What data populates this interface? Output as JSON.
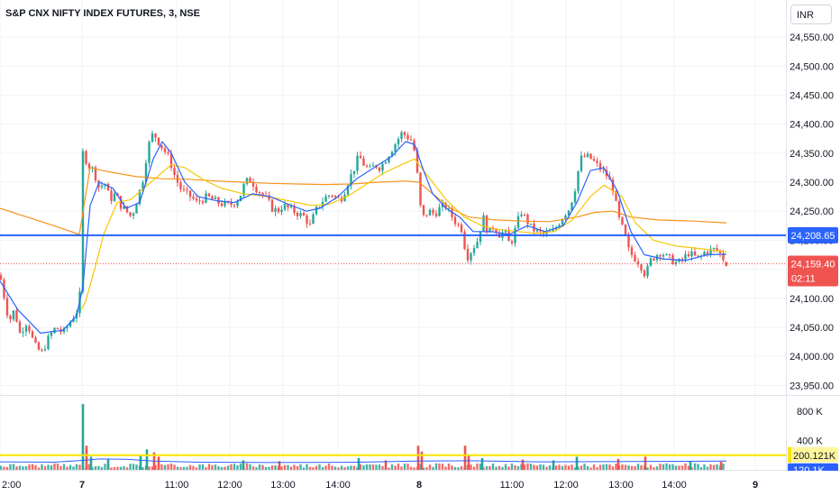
{
  "header": {
    "symbol_title": "S&P CNX NIFTY INDEX FUTURES, 3, NSE",
    "currency": "INR"
  },
  "colors": {
    "up": "#26a69a",
    "down": "#ef5350",
    "ma_fast": "#2962ff",
    "ma_mid": "#f7c600",
    "ma_slow": "#f7931a",
    "hline": "#2962ff",
    "volume_up": "#26a69a",
    "volume_down": "#ef5350",
    "volume_hline": "#f7e600",
    "price_grid": "#f0f3fa"
  },
  "chart_data": {
    "type": "candlestick",
    "title": "S&P CNX NIFTY INDEX FUTURES, 3, NSE",
    "currency": "INR",
    "x_ticks": [
      "2:00",
      "7",
      "11:00",
      "12:00",
      "13:00",
      "14:00",
      "8",
      "11:00",
      "12:00",
      "13:00",
      "14:00",
      "9"
    ],
    "y_ticks": [
      23950,
      24000,
      24050,
      24100,
      24150,
      24200,
      24250,
      24300,
      24350,
      24400,
      24450,
      24500,
      24550
    ],
    "y_tick_labels": [
      "23,950.00",
      "24,000.00",
      "24,050.00",
      "24,100.00",
      "24,150.00",
      "24,200.00",
      "24,250.00",
      "24,300.00",
      "24,350.00",
      "24,400.00",
      "24,450.00",
      "24,500.00",
      "24,550.00"
    ],
    "ylim": [
      23935,
      24575
    ],
    "horizontal_line": {
      "value": 24208.65,
      "label": "24,208.65"
    },
    "last_price": {
      "value": 24159.4,
      "label": "24,159.40",
      "countdown": "02:11"
    },
    "price_path": [
      [
        0,
        24140
      ],
      [
        5,
        24100
      ],
      [
        10,
        24060
      ],
      [
        16,
        24080
      ],
      [
        22,
        24040
      ],
      [
        30,
        24060
      ],
      [
        38,
        24020
      ],
      [
        46,
        24005
      ],
      [
        55,
        24035
      ],
      [
        62,
        24050
      ],
      [
        70,
        24040
      ],
      [
        78,
        24060
      ],
      [
        86,
        24080
      ],
      [
        90,
        24120
      ],
      [
        92,
        24350
      ],
      [
        98,
        24330
      ],
      [
        104,
        24320
      ],
      [
        110,
        24290
      ],
      [
        116,
        24300
      ],
      [
        122,
        24270
      ],
      [
        128,
        24280
      ],
      [
        134,
        24260
      ],
      [
        140,
        24250
      ],
      [
        146,
        24240
      ],
      [
        152,
        24270
      ],
      [
        158,
        24300
      ],
      [
        164,
        24360
      ],
      [
        170,
        24385
      ],
      [
        176,
        24370
      ],
      [
        182,
        24355
      ],
      [
        188,
        24340
      ],
      [
        194,
        24310
      ],
      [
        200,
        24290
      ],
      [
        206,
        24280
      ],
      [
        212,
        24275
      ],
      [
        218,
        24265
      ],
      [
        224,
        24270
      ],
      [
        230,
        24275
      ],
      [
        236,
        24270
      ],
      [
        242,
        24265
      ],
      [
        248,
        24262
      ],
      [
        254,
        24260
      ],
      [
        260,
        24265
      ],
      [
        266,
        24275
      ],
      [
        272,
        24300
      ],
      [
        278,
        24305
      ],
      [
        284,
        24290
      ],
      [
        290,
        24280
      ],
      [
        296,
        24270
      ],
      [
        302,
        24255
      ],
      [
        308,
        24250
      ],
      [
        314,
        24260
      ],
      [
        320,
        24255
      ],
      [
        326,
        24250
      ],
      [
        332,
        24245
      ],
      [
        338,
        24240
      ],
      [
        344,
        24225
      ],
      [
        350,
        24250
      ],
      [
        356,
        24265
      ],
      [
        362,
        24275
      ],
      [
        368,
        24280
      ],
      [
        374,
        24270
      ],
      [
        380,
        24275
      ],
      [
        386,
        24300
      ],
      [
        392,
        24320
      ],
      [
        398,
        24345
      ],
      [
        404,
        24330
      ],
      [
        410,
        24320
      ],
      [
        416,
        24330
      ],
      [
        422,
        24325
      ],
      [
        428,
        24340
      ],
      [
        434,
        24355
      ],
      [
        440,
        24370
      ],
      [
        446,
        24385
      ],
      [
        452,
        24378
      ],
      [
        458,
        24370
      ],
      [
        462,
        24330
      ],
      [
        466,
        24260
      ],
      [
        470,
        24240
      ],
      [
        476,
        24250
      ],
      [
        482,
        24245
      ],
      [
        488,
        24255
      ],
      [
        494,
        24260
      ],
      [
        500,
        24245
      ],
      [
        506,
        24230
      ],
      [
        512,
        24220
      ],
      [
        518,
        24170
      ],
      [
        524,
        24185
      ],
      [
        530,
        24200
      ],
      [
        536,
        24240
      ],
      [
        542,
        24210
      ],
      [
        548,
        24225
      ],
      [
        554,
        24210
      ],
      [
        560,
        24215
      ],
      [
        566,
        24190
      ],
      [
        572,
        24220
      ],
      [
        578,
        24250
      ],
      [
        584,
        24235
      ],
      [
        590,
        24220
      ],
      [
        596,
        24215
      ],
      [
        602,
        24210
      ],
      [
        608,
        24212
      ],
      [
        614,
        24215
      ],
      [
        620,
        24230
      ],
      [
        626,
        24245
      ],
      [
        632,
        24255
      ],
      [
        638,
        24290
      ],
      [
        644,
        24340
      ],
      [
        650,
        24345
      ],
      [
        656,
        24340
      ],
      [
        662,
        24330
      ],
      [
        668,
        24320
      ],
      [
        674,
        24310
      ],
      [
        680,
        24290
      ],
      [
        686,
        24240
      ],
      [
        692,
        24215
      ],
      [
        698,
        24180
      ],
      [
        704,
        24170
      ],
      [
        710,
        24160
      ],
      [
        716,
        24140
      ],
      [
        722,
        24165
      ],
      [
        728,
        24175
      ],
      [
        734,
        24180
      ],
      [
        740,
        24170
      ],
      [
        746,
        24165
      ],
      [
        752,
        24160
      ],
      [
        758,
        24168
      ],
      [
        764,
        24178
      ],
      [
        770,
        24172
      ],
      [
        776,
        24168
      ],
      [
        782,
        24180
      ],
      [
        788,
        24182
      ],
      [
        794,
        24185
      ],
      [
        800,
        24175
      ],
      [
        806,
        24159
      ]
    ],
    "ma_fast": [
      [
        0,
        24130
      ],
      [
        20,
        24080
      ],
      [
        45,
        24040
      ],
      [
        70,
        24045
      ],
      [
        85,
        24070
      ],
      [
        92,
        24120
      ],
      [
        100,
        24260
      ],
      [
        110,
        24300
      ],
      [
        125,
        24290
      ],
      [
        140,
        24255
      ],
      [
        155,
        24265
      ],
      [
        170,
        24340
      ],
      [
        180,
        24370
      ],
      [
        190,
        24350
      ],
      [
        205,
        24300
      ],
      [
        220,
        24275
      ],
      [
        240,
        24268
      ],
      [
        260,
        24265
      ],
      [
        280,
        24280
      ],
      [
        300,
        24275
      ],
      [
        320,
        24262
      ],
      [
        340,
        24250
      ],
      [
        355,
        24255
      ],
      [
        375,
        24275
      ],
      [
        395,
        24305
      ],
      [
        415,
        24325
      ],
      [
        435,
        24345
      ],
      [
        450,
        24370
      ],
      [
        460,
        24365
      ],
      [
        470,
        24320
      ],
      [
        480,
        24280
      ],
      [
        495,
        24255
      ],
      [
        510,
        24240
      ],
      [
        525,
        24215
      ],
      [
        545,
        24215
      ],
      [
        565,
        24210
      ],
      [
        585,
        24225
      ],
      [
        605,
        24215
      ],
      [
        625,
        24225
      ],
      [
        640,
        24265
      ],
      [
        655,
        24320
      ],
      [
        670,
        24325
      ],
      [
        685,
        24285
      ],
      [
        700,
        24215
      ],
      [
        715,
        24175
      ],
      [
        735,
        24168
      ],
      [
        760,
        24165
      ],
      [
        785,
        24175
      ],
      [
        806,
        24176
      ]
    ],
    "ma_mid": [
      [
        90,
        24080
      ],
      [
        95,
        24095
      ],
      [
        105,
        24150
      ],
      [
        115,
        24210
      ],
      [
        130,
        24265
      ],
      [
        145,
        24270
      ],
      [
        160,
        24290
      ],
      [
        175,
        24310
      ],
      [
        190,
        24330
      ],
      [
        205,
        24325
      ],
      [
        225,
        24305
      ],
      [
        245,
        24290
      ],
      [
        270,
        24280
      ],
      [
        295,
        24276
      ],
      [
        320,
        24268
      ],
      [
        345,
        24260
      ],
      [
        365,
        24262
      ],
      [
        385,
        24275
      ],
      [
        405,
        24295
      ],
      [
        425,
        24315
      ],
      [
        445,
        24330
      ],
      [
        460,
        24340
      ],
      [
        470,
        24320
      ],
      [
        480,
        24300
      ],
      [
        495,
        24270
      ],
      [
        515,
        24240
      ],
      [
        535,
        24225
      ],
      [
        555,
        24218
      ],
      [
        575,
        24215
      ],
      [
        595,
        24212
      ],
      [
        615,
        24215
      ],
      [
        635,
        24235
      ],
      [
        655,
        24275
      ],
      [
        670,
        24295
      ],
      [
        690,
        24275
      ],
      [
        705,
        24230
      ],
      [
        725,
        24200
      ],
      [
        750,
        24190
      ],
      [
        780,
        24185
      ],
      [
        806,
        24180
      ]
    ],
    "ma_slow": [
      [
        0,
        24255
      ],
      [
        30,
        24240
      ],
      [
        60,
        24225
      ],
      [
        88,
        24210
      ],
      [
        92,
        24248
      ],
      [
        100,
        24325
      ],
      [
        120,
        24318
      ],
      [
        150,
        24310
      ],
      [
        180,
        24306
      ],
      [
        210,
        24305
      ],
      [
        240,
        24302
      ],
      [
        270,
        24300
      ],
      [
        300,
        24298
      ],
      [
        330,
        24297
      ],
      [
        360,
        24296
      ],
      [
        390,
        24297
      ],
      [
        420,
        24300
      ],
      [
        450,
        24302
      ],
      [
        465,
        24300
      ],
      [
        480,
        24280
      ],
      [
        500,
        24255
      ],
      [
        520,
        24240
      ],
      [
        550,
        24235
      ],
      [
        580,
        24233
      ],
      [
        610,
        24232
      ],
      [
        640,
        24240
      ],
      [
        660,
        24248
      ],
      [
        680,
        24250
      ],
      [
        700,
        24240
      ],
      [
        730,
        24235
      ],
      [
        770,
        24233
      ],
      [
        806,
        24230
      ]
    ],
    "volume": {
      "y_ticks": [
        "800 K",
        "400 K"
      ],
      "ylim_k": [
        0,
        1000
      ],
      "hline_value_label": "200.121K",
      "hline_value_k": 200.121,
      "ma_label": "120.1K",
      "spikes": [
        [
          92,
          900,
          "up"
        ],
        [
          96,
          330,
          "down"
        ],
        [
          101,
          180,
          "up"
        ],
        [
          120,
          150,
          "up"
        ],
        [
          156,
          200,
          "up"
        ],
        [
          163,
          280,
          "up"
        ],
        [
          171,
          240,
          "down"
        ],
        [
          176,
          180,
          "down"
        ],
        [
          270,
          130,
          "up"
        ],
        [
          310,
          120,
          "down"
        ],
        [
          398,
          160,
          "up"
        ],
        [
          428,
          130,
          "down"
        ],
        [
          464,
          330,
          "down"
        ],
        [
          468,
          250,
          "down"
        ],
        [
          516,
          330,
          "down"
        ],
        [
          520,
          200,
          "down"
        ],
        [
          535,
          160,
          "up"
        ],
        [
          580,
          140,
          "down"
        ],
        [
          614,
          130,
          "up"
        ],
        [
          640,
          180,
          "up"
        ],
        [
          686,
          150,
          "down"
        ],
        [
          716,
          180,
          "down"
        ],
        [
          766,
          120,
          "up"
        ],
        [
          800,
          110,
          "down"
        ]
      ]
    }
  },
  "axis": {
    "volume_hline_label": "200.121K",
    "volume_ma_label": "120.1K",
    "hline_label": "24,208.65",
    "last_price_label": "24,159.40",
    "countdown": "02:11"
  }
}
